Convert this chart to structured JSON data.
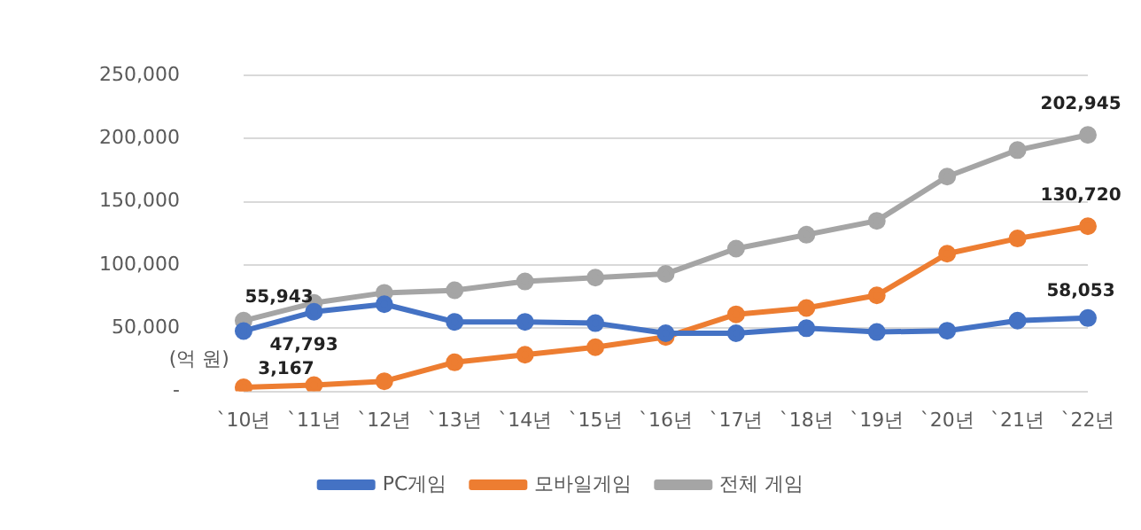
{
  "chart_data": {
    "type": "line",
    "ylabel": "(억 원)",
    "categories": [
      "`10년",
      "`11년",
      "`12년",
      "`13년",
      "`14년",
      "`15년",
      "`16년",
      "`17년",
      "`18년",
      "`19년",
      "`20년",
      "`21년",
      "`22년"
    ],
    "series": [
      {
        "name": "PC게임",
        "color": "#4472c4",
        "values": [
          47793,
          63000,
          69000,
          55000,
          55000,
          54000,
          46000,
          46000,
          50000,
          47000,
          48000,
          56000,
          58053
        ],
        "value_labels": [
          "47,793",
          null,
          null,
          null,
          null,
          null,
          null,
          null,
          null,
          null,
          null,
          null,
          "58,053"
        ]
      },
      {
        "name": "모바일게임",
        "color": "#ed7d31",
        "values": [
          3167,
          5000,
          8000,
          23000,
          29000,
          35000,
          43000,
          61000,
          66000,
          76000,
          109000,
          121000,
          130720
        ],
        "value_labels": [
          "3,167",
          null,
          null,
          null,
          null,
          null,
          null,
          null,
          null,
          null,
          null,
          null,
          "130,720"
        ]
      },
      {
        "name": "전체 게임",
        "color": "#a5a5a5",
        "values": [
          55943,
          70000,
          78000,
          80000,
          87000,
          90000,
          93000,
          113000,
          124000,
          135000,
          170000,
          191000,
          202945
        ],
        "value_labels": [
          "55,943",
          null,
          null,
          null,
          null,
          null,
          null,
          null,
          null,
          null,
          null,
          null,
          "202,945"
        ]
      }
    ],
    "ylim": [
      0,
      250000
    ],
    "yticks": [
      {
        "value": 0,
        "label": "-"
      },
      {
        "value": 50000,
        "label": "50,000"
      },
      {
        "value": 100000,
        "label": "100,000"
      },
      {
        "value": 150000,
        "label": "150,000"
      },
      {
        "value": 200000,
        "label": "200,000"
      },
      {
        "value": 250000,
        "label": "250,000"
      }
    ],
    "grid": "y",
    "legend": "bottom",
    "marker": "circle",
    "line_style": "solid"
  }
}
